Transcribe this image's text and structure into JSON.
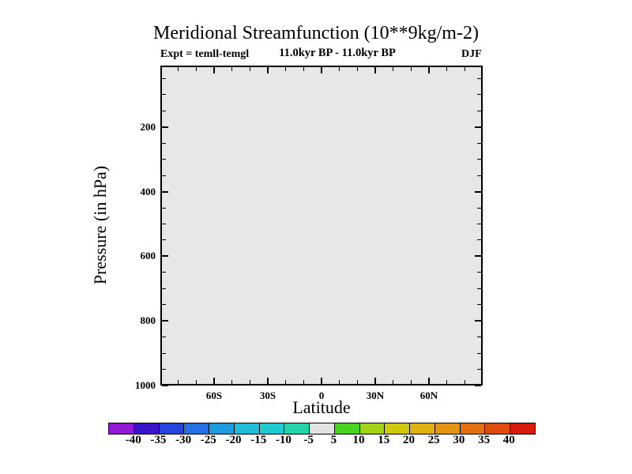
{
  "header": {
    "title": "Meridional Streamfunction (10**9kg/m-2)",
    "experiment": "Expt = temll-temgl",
    "period": "11.0kyr BP - 11.0kyr BP",
    "season": "DJF"
  },
  "chart_data": {
    "type": "heatmap",
    "title": "Meridional Streamfunction (10**9kg/m-2)",
    "subtitle": "11.0kyr BP - 11.0kyr BP",
    "experiment_label": "Expt = temll-temgl",
    "season": "DJF",
    "xlabel": "Latitude",
    "ylabel": "Pressure (in hPa)",
    "x_axis": {
      "range_deg": [
        -90,
        90
      ],
      "major_ticks": [
        {
          "value": -60,
          "label": "60S"
        },
        {
          "value": -30,
          "label": "30S"
        },
        {
          "value": 0,
          "label": "0"
        },
        {
          "value": 30,
          "label": "30N"
        },
        {
          "value": 60,
          "label": "60N"
        }
      ],
      "minor_tick_step_deg": 10
    },
    "y_axis": {
      "range_hpa": [
        10,
        1000
      ],
      "major_ticks": [
        {
          "value": 200,
          "label": "200"
        },
        {
          "value": 400,
          "label": "400"
        },
        {
          "value": 600,
          "label": "600"
        },
        {
          "value": 800,
          "label": "800"
        },
        {
          "value": 1000,
          "label": "1000"
        }
      ],
      "minor_tick_step_hpa": 50
    },
    "field": {
      "description": "Difference field is zero everywhere; entire plot area falls in the -5 to 5 contour band and is drawn as a uniform light-gray fill with no contour lines",
      "uniform_bin": [
        -5,
        5
      ],
      "fill_color": "#e7e7e7"
    },
    "colorbar": {
      "tick_labels": [
        "-40",
        "-35",
        "-30",
        "-25",
        "-20",
        "-15",
        "-10",
        "-5",
        "5",
        "10",
        "15",
        "20",
        "25",
        "30",
        "35",
        "40"
      ],
      "segment_colors": [
        "#9418d8",
        "#3c14cc",
        "#2444dc",
        "#2470e4",
        "#1c9ce0",
        "#20bcd8",
        "#1cccd0",
        "#24d4a8",
        "#e2e2e2",
        "#48d420",
        "#a0d414",
        "#d0c80c",
        "#e0b010",
        "#e49410",
        "#e47010",
        "#e04c10",
        "#d81c0c"
      ],
      "legend_position": "bottom"
    },
    "grid": false
  }
}
